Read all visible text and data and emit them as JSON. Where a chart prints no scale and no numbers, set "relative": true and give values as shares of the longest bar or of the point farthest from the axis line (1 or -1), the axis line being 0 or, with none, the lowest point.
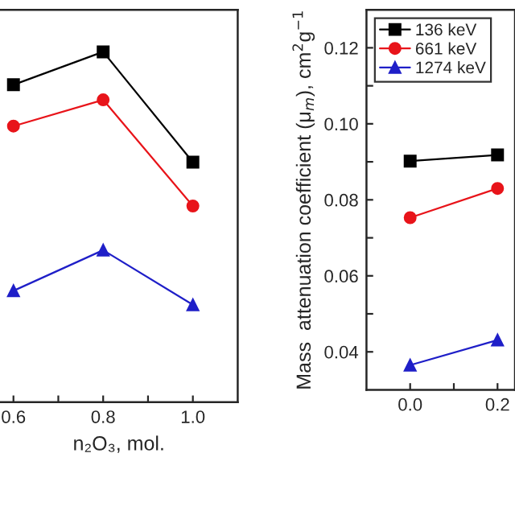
{
  "chart_data": [
    {
      "type": "line",
      "relative": true,
      "x": [
        0.6,
        0.8,
        1.0
      ],
      "xlim": [
        0.57,
        1.1
      ],
      "xticks": [
        0.6,
        {
          "value": 0.7,
          "label": null
        },
        0.8,
        {
          "value": 0.9,
          "label": null
        },
        {
          "value": 1.0,
          "label": "1.0"
        }
      ],
      "xlabel": "n₂O₃, mol.",
      "tick_labels": "x",
      "legend": false,
      "series": [
        {
          "color": "#000000",
          "marker": "square",
          "values": [
            0.906,
            1.0,
            0.685
          ]
        },
        {
          "color": "#e8141a",
          "marker": "circle",
          "values": [
            0.788,
            0.863,
            0.56
          ]
        },
        {
          "color": "#1f1fc8",
          "marker": "triangle",
          "values": [
            0.318,
            0.434,
            0.278
          ]
        }
      ]
    },
    {
      "type": "line",
      "x": [
        0.0,
        0.2
      ],
      "xlim": [
        -0.1,
        0.24
      ],
      "xticks": [
        {
          "value": 0.0,
          "label": "0.0"
        },
        {
          "value": 0.1,
          "label": null
        },
        0.2
      ],
      "ylim": [
        0.03,
        0.13
      ],
      "yticks": [
        0.04,
        {
          "value": 0.05,
          "label": null
        },
        0.06,
        {
          "value": 0.07,
          "label": null
        },
        0.08,
        {
          "value": 0.09,
          "label": null
        },
        {
          "value": 0.1,
          "label": "0.10"
        },
        {
          "value": 0.11,
          "label": null
        },
        0.12
      ],
      "ylabel": "Mass  attenuation coefficient (μ$_{m}$), cm$^{2}$g$^{−1}$",
      "legend": "top left",
      "series": [
        {
          "name": "136 keV",
          "color": "#000000",
          "marker": "square",
          "values": [
            0.0902,
            0.0918
          ]
        },
        {
          "name": "661 keV",
          "color": "#e8141a",
          "marker": "circle",
          "values": [
            0.0753,
            0.083
          ]
        },
        {
          "name": "1274 keV",
          "color": "#1f1fc8",
          "marker": "triangle",
          "values": [
            0.0365,
            0.0431
          ]
        }
      ]
    }
  ]
}
